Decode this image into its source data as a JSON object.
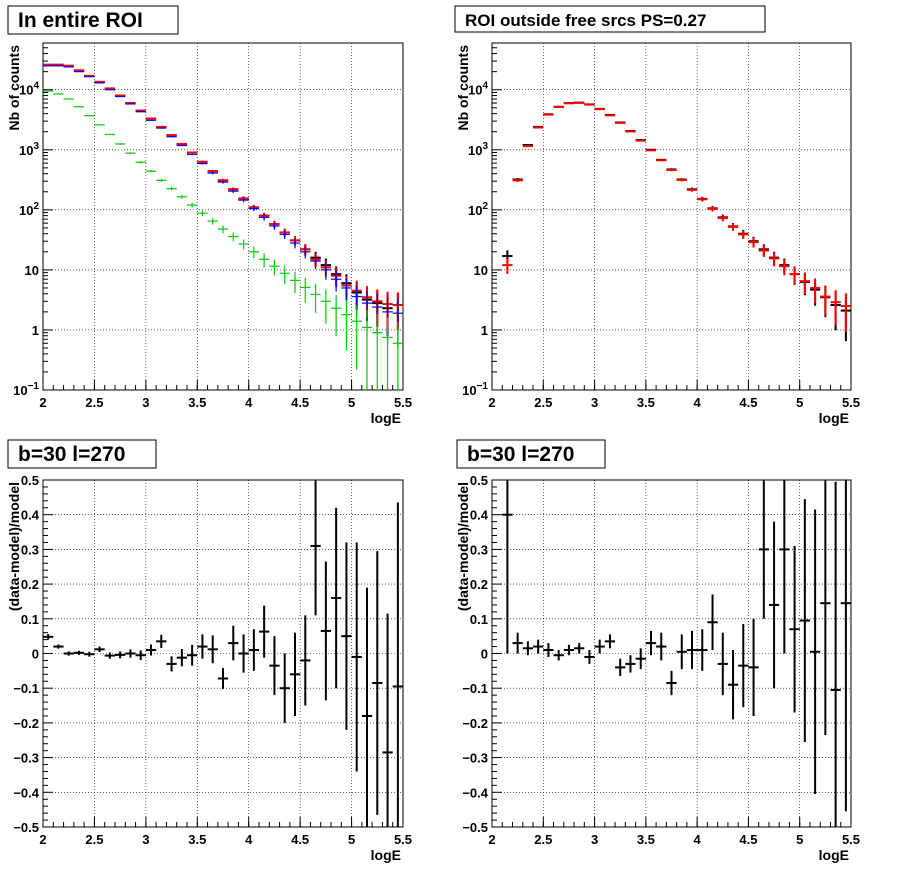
{
  "chart_data": [
    {
      "type": "scatter",
      "title": "In entire ROI",
      "xlabel": "logE",
      "ylabel": "Nb of counts",
      "xlim": [
        2,
        5.5
      ],
      "ylim": [
        0.1,
        60000
      ],
      "yscale": "log",
      "grid": true,
      "xticks": [
        "2",
        "2.5",
        "3",
        "3.5",
        "4",
        "4.5",
        "5",
        "5.5"
      ],
      "yticks": [
        {
          "value": 0.1,
          "base": "10",
          "exp": "−1"
        },
        {
          "value": 1,
          "label": "1"
        },
        {
          "value": 10,
          "label": "10"
        },
        {
          "value": 100,
          "base": "10",
          "exp": "2"
        },
        {
          "value": 1000,
          "base": "10",
          "exp": "3"
        },
        {
          "value": 10000,
          "base": "10",
          "exp": "4"
        }
      ],
      "x": [
        2.05,
        2.15,
        2.25,
        2.35,
        2.45,
        2.55,
        2.65,
        2.75,
        2.85,
        2.95,
        3.05,
        3.15,
        3.25,
        3.35,
        3.45,
        3.55,
        3.65,
        3.75,
        3.85,
        3.95,
        4.05,
        4.15,
        4.25,
        4.35,
        4.45,
        4.55,
        4.65,
        4.75,
        4.85,
        4.95,
        5.05,
        5.15,
        5.25,
        5.35,
        5.45
      ],
      "series": [
        {
          "color": "#000000",
          "values": [
            26000,
            26000,
            25000,
            21000,
            17000,
            13500,
            10500,
            8000,
            6000,
            4500,
            3300,
            2400,
            1750,
            1250,
            900,
            630,
            440,
            310,
            220,
            155,
            110,
            80,
            58,
            42,
            31,
            22,
            16,
            12,
            8.5,
            6,
            4.2,
            3.2,
            2.8,
            2.3,
            2.6
          ]
        },
        {
          "color": "#ff0000",
          "values": [
            26000,
            26000,
            25000,
            21000,
            17000,
            13500,
            10500,
            8000,
            6000,
            4500,
            3300,
            2400,
            1750,
            1250,
            900,
            630,
            440,
            310,
            220,
            155,
            110,
            80,
            58,
            42,
            31,
            22,
            15,
            11,
            8,
            5.5,
            4.5,
            3.5,
            3.0,
            2.7,
            2.6
          ]
        },
        {
          "color": "#0000ff",
          "values": [
            25000,
            25000,
            24000,
            20000,
            16500,
            13000,
            10000,
            7700,
            5800,
            4300,
            3100,
            2300,
            1650,
            1180,
            840,
            590,
            410,
            290,
            205,
            145,
            105,
            75,
            54,
            39,
            28,
            20,
            14,
            10,
            7,
            5,
            3.6,
            2.8,
            2.4,
            2.0,
            1.9
          ]
        },
        {
          "color": "#00cc00",
          "values": [
            9500,
            8500,
            7000,
            5200,
            3700,
            2600,
            1800,
            1250,
            880,
            620,
            440,
            310,
            225,
            165,
            120,
            88,
            65,
            48,
            36,
            27,
            20,
            15,
            11.5,
            8.8,
            6.7,
            5.1,
            3.9,
            3.0,
            2.3,
            1.8,
            1.4,
            1.1,
            0.9,
            0.75,
            0.6
          ]
        }
      ]
    },
    {
      "type": "scatter",
      "title": "ROI outside free srcs PS=0.27",
      "xlabel": "logE",
      "ylabel": "Nb of counts",
      "xlim": [
        2,
        5.5
      ],
      "ylim": [
        0.1,
        60000
      ],
      "yscale": "log",
      "grid": true,
      "xticks": [
        "2",
        "2.5",
        "3",
        "3.5",
        "4",
        "4.5",
        "5",
        "5.5"
      ],
      "yticks": [
        {
          "value": 0.1,
          "base": "10",
          "exp": "−1"
        },
        {
          "value": 1,
          "label": "1"
        },
        {
          "value": 10,
          "label": "10"
        },
        {
          "value": 100,
          "base": "10",
          "exp": "2"
        },
        {
          "value": 1000,
          "base": "10",
          "exp": "3"
        },
        {
          "value": 10000,
          "base": "10",
          "exp": "4"
        }
      ],
      "x": [
        2.15,
        2.25,
        2.35,
        2.45,
        2.55,
        2.65,
        2.75,
        2.85,
        2.95,
        3.05,
        3.15,
        3.25,
        3.35,
        3.45,
        3.55,
        3.65,
        3.75,
        3.85,
        3.95,
        4.05,
        4.15,
        4.25,
        4.35,
        4.45,
        4.55,
        4.65,
        4.75,
        4.85,
        4.95,
        5.05,
        5.15,
        5.25,
        5.35,
        5.45
      ],
      "series": [
        {
          "color": "#000000",
          "values": [
            17,
            320,
            1200,
            2400,
            3900,
            5200,
            6000,
            6100,
            5700,
            4800,
            3800,
            2850,
            2050,
            1450,
            1000,
            680,
            470,
            320,
            220,
            152,
            106,
            75,
            53,
            40,
            30,
            22,
            16,
            12,
            8.5,
            6.3,
            4.7,
            3.5,
            2.6,
            2.1
          ]
        },
        {
          "color": "#ff0000",
          "values": [
            12,
            310,
            1150,
            2350,
            3850,
            5150,
            5950,
            6050,
            5650,
            4750,
            3750,
            2800,
            2020,
            1420,
            980,
            670,
            460,
            315,
            215,
            150,
            104,
            73,
            52,
            39,
            29,
            21,
            15.5,
            11.5,
            8.5,
            6.5,
            5,
            3.6,
            2.9,
            2.5
          ]
        }
      ]
    },
    {
      "type": "scatter",
      "title": "b=30 l=270",
      "xlabel": "logE",
      "ylabel": "(data-model)/model",
      "xlim": [
        2,
        5.5
      ],
      "ylim": [
        -0.5,
        0.5
      ],
      "grid": true,
      "xticks": [
        "2",
        "2.5",
        "3",
        "3.5",
        "4",
        "4.5",
        "5",
        "5.5"
      ],
      "yticks": [
        "−0.5",
        "−0.4",
        "−0.3",
        "−0.2",
        "−0.1",
        "0",
        "0.1",
        "0.2",
        "0.3",
        "0.4",
        "0.5"
      ],
      "x": [
        2.05,
        2.15,
        2.25,
        2.35,
        2.45,
        2.55,
        2.65,
        2.75,
        2.85,
        2.95,
        3.05,
        3.15,
        3.25,
        3.35,
        3.45,
        3.55,
        3.65,
        3.75,
        3.85,
        3.95,
        4.05,
        4.15,
        4.25,
        4.35,
        4.45,
        4.55,
        4.65,
        4.75,
        4.85,
        4.95,
        5.05,
        5.15,
        5.25,
        5.35,
        5.45
      ],
      "series": [
        {
          "color": "#000000",
          "values": [
            0.048,
            0.02,
            0.0,
            0.002,
            -0.002,
            0.012,
            -0.006,
            -0.004,
            0.0,
            -0.005,
            0.01,
            0.035,
            -0.03,
            -0.012,
            -0.005,
            0.02,
            0.012,
            -0.072,
            0.03,
            0.0,
            0.01,
            0.063,
            -0.035,
            -0.1,
            -0.06,
            -0.02,
            0.31,
            0.065,
            0.16,
            0.05,
            -0.01,
            -0.18,
            -0.085,
            -0.285,
            -0.095
          ],
          "errors": [
            0.008,
            0.006,
            0.006,
            0.006,
            0.007,
            0.008,
            0.009,
            0.01,
            0.012,
            0.014,
            0.016,
            0.019,
            0.022,
            0.025,
            0.03,
            0.035,
            0.04,
            0.03,
            0.05,
            0.055,
            0.06,
            0.075,
            0.085,
            0.1,
            0.12,
            0.13,
            0.2,
            0.2,
            0.26,
            0.27,
            0.33,
            0.37,
            0.38,
            0.4,
            0.53
          ]
        }
      ]
    },
    {
      "type": "scatter",
      "title": "b=30 l=270",
      "xlabel": "logE",
      "ylabel": "(data-model)/model",
      "xlim": [
        2,
        5.5
      ],
      "ylim": [
        -0.5,
        0.5
      ],
      "grid": true,
      "xticks": [
        "2",
        "2.5",
        "3",
        "3.5",
        "4",
        "4.5",
        "5",
        "5.5"
      ],
      "yticks": [
        "−0.5",
        "−0.4",
        "−0.3",
        "−0.2",
        "−0.1",
        "0",
        "0.1",
        "0.2",
        "0.3",
        "0.4",
        "0.5"
      ],
      "x": [
        2.15,
        2.25,
        2.35,
        2.45,
        2.55,
        2.65,
        2.75,
        2.85,
        2.95,
        3.05,
        3.15,
        3.25,
        3.35,
        3.45,
        3.55,
        3.65,
        3.75,
        3.85,
        3.95,
        4.05,
        4.15,
        4.25,
        4.35,
        4.45,
        4.55,
        4.65,
        4.75,
        4.85,
        4.95,
        5.05,
        5.15,
        5.25,
        5.35,
        5.45
      ],
      "series": [
        {
          "color": "#000000",
          "values": [
            0.4,
            0.03,
            0.015,
            0.02,
            0.01,
            -0.005,
            0.01,
            0.015,
            -0.01,
            0.02,
            0.035,
            -0.04,
            -0.03,
            -0.015,
            0.03,
            0.02,
            -0.085,
            0.005,
            0.01,
            0.01,
            0.09,
            -0.03,
            -0.09,
            -0.035,
            -0.04,
            0.3,
            0.14,
            0.3,
            0.07,
            0.095,
            0.005,
            0.145,
            -0.105,
            0.145
          ],
          "errors": [
            0.4,
            0.03,
            0.02,
            0.02,
            0.02,
            0.015,
            0.015,
            0.015,
            0.02,
            0.02,
            0.02,
            0.025,
            0.025,
            0.03,
            0.035,
            0.04,
            0.035,
            0.05,
            0.055,
            0.06,
            0.08,
            0.09,
            0.1,
            0.12,
            0.14,
            0.2,
            0.24,
            0.3,
            0.24,
            0.35,
            0.41,
            0.38,
            0.6,
            0.6
          ]
        }
      ]
    }
  ]
}
